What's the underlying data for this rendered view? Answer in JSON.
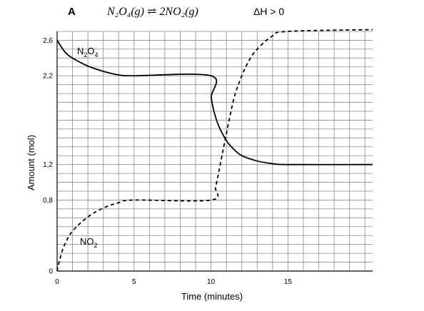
{
  "header": {
    "panel_letter": "A",
    "equation": "N₂O₄(g) ⇌ 2NO₂(g)",
    "enthalpy": "ΔH > 0"
  },
  "chart_data": {
    "type": "line",
    "title": "",
    "xlabel": "Time (minutes)",
    "ylabel": "Amount (mol)",
    "xlim": [
      0,
      20.5
    ],
    "ylim": [
      0,
      2.7
    ],
    "x_ticks": [
      0,
      5,
      10,
      15
    ],
    "x_tick_labels": [
      "0",
      "5",
      "10",
      "15"
    ],
    "y_ticks": [
      0,
      0.8,
      1.2,
      2.2,
      2.6
    ],
    "y_tick_labels": [
      "0",
      "0,8",
      "1,2",
      "2,2",
      "2,6"
    ],
    "grid": true,
    "series": [
      {
        "name_main": "N",
        "name_sub1": "2",
        "name_mid": "O",
        "name_sub2": "4",
        "style": "solid",
        "points": [
          [
            0,
            2.6
          ],
          [
            0.5,
            2.47
          ],
          [
            1,
            2.4
          ],
          [
            2,
            2.31
          ],
          [
            3,
            2.25
          ],
          [
            4,
            2.21
          ],
          [
            5,
            2.2
          ],
          [
            10,
            2.2
          ],
          [
            10.02,
            1.95
          ],
          [
            10.4,
            1.68
          ],
          [
            11,
            1.47
          ],
          [
            11.5,
            1.37
          ],
          [
            12,
            1.3
          ],
          [
            13,
            1.24
          ],
          [
            14,
            1.21
          ],
          [
            15,
            1.2
          ],
          [
            20.5,
            1.2
          ]
        ]
      },
      {
        "name_main": "NO",
        "name_sub1": "2",
        "style": "dashed",
        "points": [
          [
            0,
            0
          ],
          [
            0.2,
            0.15
          ],
          [
            0.5,
            0.3
          ],
          [
            1,
            0.45
          ],
          [
            2,
            0.61
          ],
          [
            3,
            0.71
          ],
          [
            4,
            0.77
          ],
          [
            5,
            0.8
          ],
          [
            10,
            0.8
          ],
          [
            10.3,
            0.95
          ],
          [
            10.6,
            1.2
          ],
          [
            11,
            1.55
          ],
          [
            11.5,
            1.95
          ],
          [
            12,
            2.2
          ],
          [
            12.5,
            2.38
          ],
          [
            13,
            2.5
          ],
          [
            14,
            2.65
          ],
          [
            15,
            2.7
          ],
          [
            20.5,
            2.72
          ]
        ]
      }
    ]
  }
}
